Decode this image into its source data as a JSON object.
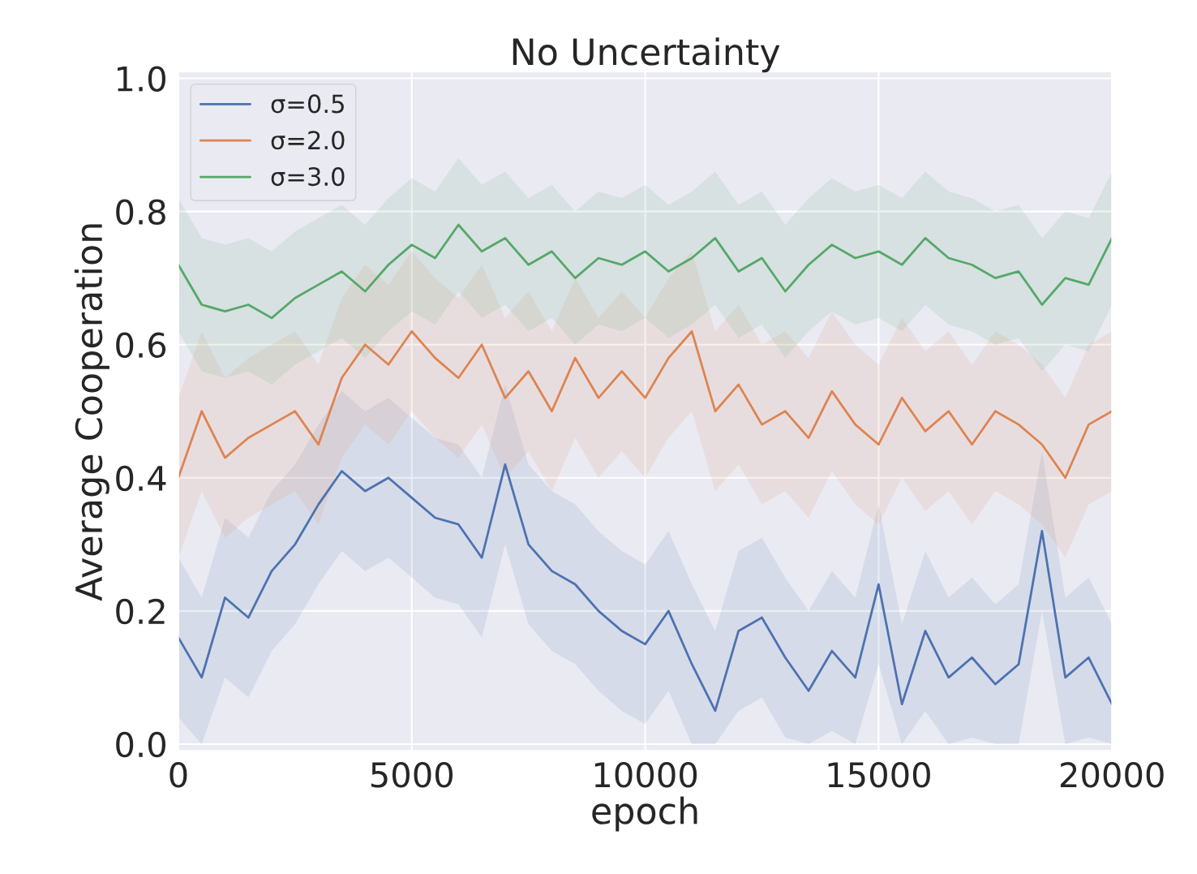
{
  "chart_data": {
    "type": "line",
    "title": "No Uncertainty",
    "xlabel": "epoch",
    "ylabel": "Average Cooperation",
    "x": [
      0,
      500,
      1000,
      1500,
      2000,
      2500,
      3000,
      3500,
      4000,
      4500,
      5000,
      5500,
      6000,
      6500,
      7000,
      7500,
      8000,
      8500,
      9000,
      9500,
      10000,
      10500,
      11000,
      11500,
      12000,
      12500,
      13000,
      13500,
      14000,
      14500,
      15000,
      15500,
      16000,
      16500,
      17000,
      17500,
      18000,
      18500,
      19000,
      19500,
      20000
    ],
    "series": [
      {
        "name": "σ=0.5",
        "color": "#4c72b0",
        "values": [
          0.16,
          0.1,
          0.22,
          0.19,
          0.26,
          0.3,
          0.36,
          0.41,
          0.38,
          0.4,
          0.37,
          0.34,
          0.33,
          0.28,
          0.42,
          0.3,
          0.26,
          0.24,
          0.2,
          0.17,
          0.15,
          0.2,
          0.12,
          0.05,
          0.17,
          0.19,
          0.13,
          0.08,
          0.14,
          0.1,
          0.24,
          0.06,
          0.17,
          0.1,
          0.13,
          0.09,
          0.12,
          0.32,
          0.1,
          0.13,
          0.06
        ],
        "lower": [
          0.04,
          0,
          0.1,
          0.07,
          0.14,
          0.18,
          0.24,
          0.29,
          0.26,
          0.28,
          0.25,
          0.22,
          0.21,
          0.16,
          0.3,
          0.18,
          0.14,
          0.12,
          0.08,
          0.05,
          0.03,
          0.08,
          0,
          0,
          0.05,
          0.07,
          0.01,
          0,
          0.02,
          0,
          0.12,
          0,
          0.05,
          0,
          0.01,
          0,
          0,
          0.2,
          0,
          0.01,
          0
        ],
        "upper": [
          0.28,
          0.22,
          0.34,
          0.31,
          0.38,
          0.42,
          0.48,
          0.53,
          0.5,
          0.52,
          0.49,
          0.46,
          0.45,
          0.4,
          0.54,
          0.42,
          0.38,
          0.36,
          0.32,
          0.29,
          0.27,
          0.32,
          0.24,
          0.17,
          0.29,
          0.31,
          0.25,
          0.2,
          0.26,
          0.22,
          0.36,
          0.18,
          0.29,
          0.22,
          0.25,
          0.21,
          0.24,
          0.44,
          0.22,
          0.25,
          0.18
        ]
      },
      {
        "name": "σ=2.0",
        "color": "#dd8452",
        "values": [
          0.4,
          0.5,
          0.43,
          0.46,
          0.48,
          0.5,
          0.45,
          0.55,
          0.6,
          0.57,
          0.62,
          0.58,
          0.55,
          0.6,
          0.52,
          0.56,
          0.5,
          0.58,
          0.52,
          0.56,
          0.52,
          0.58,
          0.62,
          0.5,
          0.54,
          0.48,
          0.5,
          0.46,
          0.53,
          0.48,
          0.45,
          0.52,
          0.47,
          0.5,
          0.45,
          0.5,
          0.48,
          0.45,
          0.4,
          0.48,
          0.5
        ],
        "lower": [
          0.28,
          0.38,
          0.31,
          0.34,
          0.36,
          0.38,
          0.33,
          0.43,
          0.48,
          0.45,
          0.5,
          0.46,
          0.43,
          0.48,
          0.4,
          0.44,
          0.38,
          0.46,
          0.4,
          0.44,
          0.4,
          0.46,
          0.5,
          0.38,
          0.42,
          0.36,
          0.38,
          0.34,
          0.41,
          0.36,
          0.33,
          0.4,
          0.35,
          0.38,
          0.33,
          0.38,
          0.36,
          0.33,
          0.28,
          0.36,
          0.38
        ],
        "upper": [
          0.52,
          0.62,
          0.55,
          0.58,
          0.6,
          0.62,
          0.57,
          0.67,
          0.72,
          0.69,
          0.74,
          0.7,
          0.67,
          0.72,
          0.64,
          0.68,
          0.62,
          0.7,
          0.64,
          0.68,
          0.64,
          0.7,
          0.74,
          0.62,
          0.66,
          0.6,
          0.62,
          0.58,
          0.65,
          0.6,
          0.57,
          0.64,
          0.59,
          0.62,
          0.57,
          0.62,
          0.6,
          0.57,
          0.52,
          0.6,
          0.62
        ]
      },
      {
        "name": "σ=3.0",
        "color": "#55a868",
        "values": [
          0.72,
          0.66,
          0.65,
          0.66,
          0.64,
          0.67,
          0.69,
          0.71,
          0.68,
          0.72,
          0.75,
          0.73,
          0.78,
          0.74,
          0.76,
          0.72,
          0.74,
          0.7,
          0.73,
          0.72,
          0.74,
          0.71,
          0.73,
          0.76,
          0.71,
          0.73,
          0.68,
          0.72,
          0.75,
          0.73,
          0.74,
          0.72,
          0.76,
          0.73,
          0.72,
          0.7,
          0.71,
          0.66,
          0.7,
          0.69,
          0.76
        ],
        "lower": [
          0.62,
          0.56,
          0.55,
          0.56,
          0.54,
          0.57,
          0.59,
          0.61,
          0.58,
          0.62,
          0.65,
          0.63,
          0.68,
          0.64,
          0.66,
          0.62,
          0.64,
          0.6,
          0.63,
          0.62,
          0.64,
          0.61,
          0.63,
          0.66,
          0.61,
          0.63,
          0.58,
          0.62,
          0.65,
          0.63,
          0.64,
          0.62,
          0.66,
          0.63,
          0.62,
          0.6,
          0.61,
          0.56,
          0.6,
          0.59,
          0.66
        ],
        "upper": [
          0.82,
          0.76,
          0.75,
          0.76,
          0.74,
          0.77,
          0.79,
          0.81,
          0.78,
          0.82,
          0.85,
          0.83,
          0.88,
          0.84,
          0.86,
          0.82,
          0.84,
          0.8,
          0.83,
          0.82,
          0.84,
          0.81,
          0.83,
          0.86,
          0.81,
          0.83,
          0.78,
          0.82,
          0.85,
          0.83,
          0.84,
          0.82,
          0.86,
          0.83,
          0.82,
          0.8,
          0.81,
          0.76,
          0.8,
          0.79,
          0.86
        ]
      }
    ],
    "xlim": [
      0,
      20000
    ],
    "xticks": [
      0,
      5000,
      10000,
      15000,
      20000
    ],
    "ylim": [
      -0.01,
      1.01
    ],
    "yticks": [
      {
        "value": 0,
        "label": "0.0"
      },
      {
        "value": 0.2,
        "label": "0.2"
      },
      {
        "value": 0.4,
        "label": "0.4"
      },
      {
        "value": 0.6,
        "label": "0.6"
      },
      {
        "value": 0.8,
        "label": "0.8"
      },
      {
        "value": 1.0,
        "label": "1.0"
      }
    ],
    "grid": true,
    "legend": "top left"
  }
}
